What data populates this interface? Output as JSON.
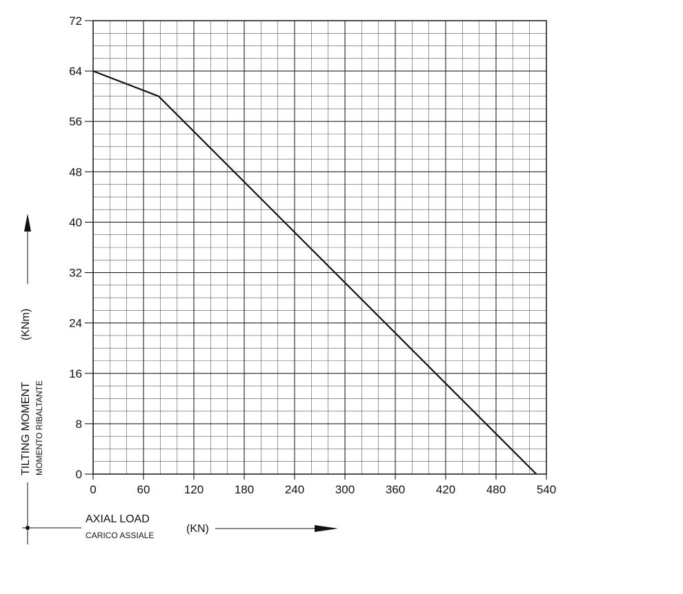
{
  "chart_data": {
    "type": "line",
    "title": "",
    "x_axis": {
      "label": "AXIAL LOAD",
      "label_secondary": "CARICO ASSIALE",
      "unit": "(KN)",
      "range": [
        0,
        540
      ],
      "ticks": [
        "0",
        "60",
        "120",
        "180",
        "240",
        "300",
        "360",
        "420",
        "480",
        "540"
      ]
    },
    "y_axis": {
      "label": "TILTING MOMENT",
      "label_secondary": "MOMENTO RIBALTANTE",
      "unit": "(KNm)",
      "range": [
        0,
        72
      ],
      "ticks": [
        "0",
        "8",
        "16",
        "24",
        "32",
        "40",
        "48",
        "56",
        "64",
        "72"
      ]
    },
    "grid": true,
    "series": [
      {
        "x": [
          0,
          78,
          528
        ],
        "y": [
          64,
          60,
          0
        ]
      }
    ]
  }
}
